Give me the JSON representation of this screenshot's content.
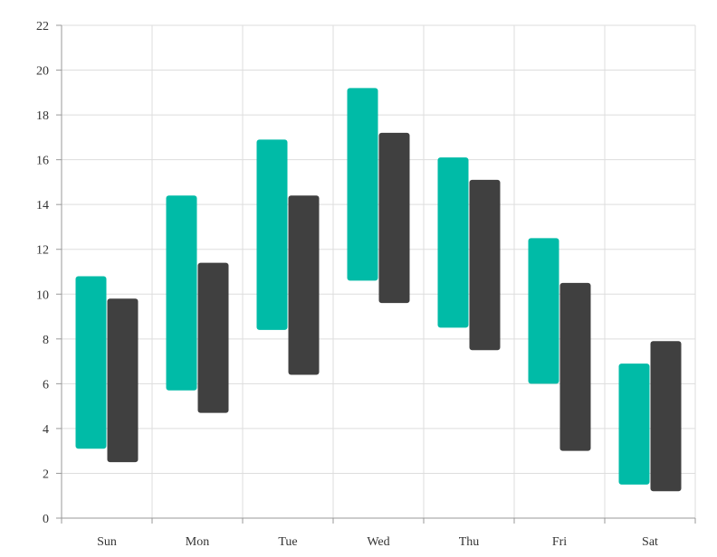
{
  "chart_data": {
    "type": "range-bar",
    "categories": [
      "Sun",
      "Mon",
      "Tue",
      "Wed",
      "Thu",
      "Fri",
      "Sat"
    ],
    "series": [
      {
        "color": "#00bba7",
        "low": [
          3.1,
          5.7,
          8.4,
          10.6,
          8.5,
          6.0,
          1.5
        ],
        "high": [
          10.8,
          14.4,
          16.9,
          19.2,
          16.1,
          12.5,
          6.9
        ]
      },
      {
        "color": "#404040",
        "low": [
          2.5,
          4.7,
          6.4,
          9.6,
          7.5,
          3.0,
          1.2
        ],
        "high": [
          9.8,
          11.4,
          14.4,
          17.2,
          15.1,
          10.5,
          7.9
        ]
      }
    ],
    "ylim": [
      0,
      22
    ],
    "yticks": [
      "0",
      "2",
      "4",
      "6",
      "8",
      "10",
      "12",
      "14",
      "16",
      "18",
      "20",
      "22"
    ],
    "grid": true,
    "legend": false
  }
}
